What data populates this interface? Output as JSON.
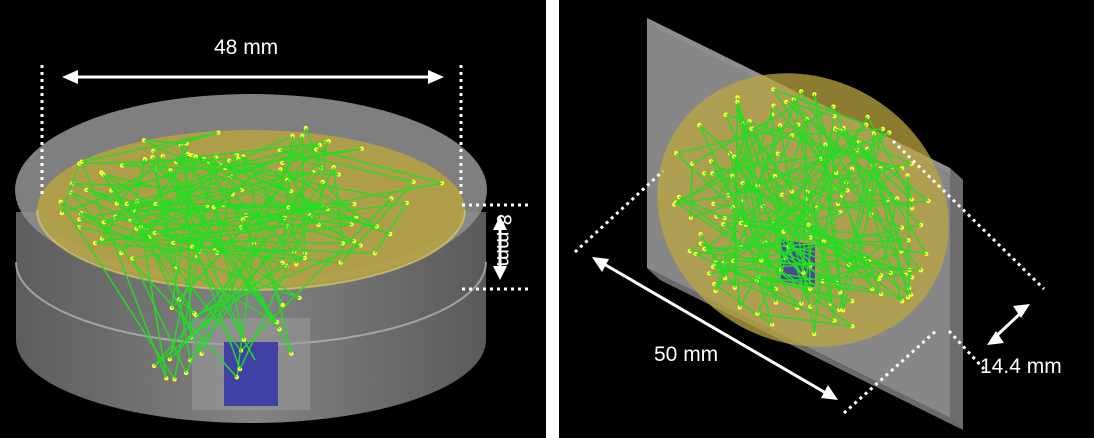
{
  "panels": {
    "left": {
      "width_label": "48 mm",
      "height_label": "8 mm"
    },
    "right": {
      "length_label": "50 mm",
      "depth_label": "14.4 mm"
    }
  },
  "colors": {
    "background": "#000000",
    "trajectory": "#22dd22",
    "points": "#ffff33",
    "volume_fill": "#b9a640",
    "detector": "#3a3aa8",
    "dimension_lines": "#ffffff"
  }
}
